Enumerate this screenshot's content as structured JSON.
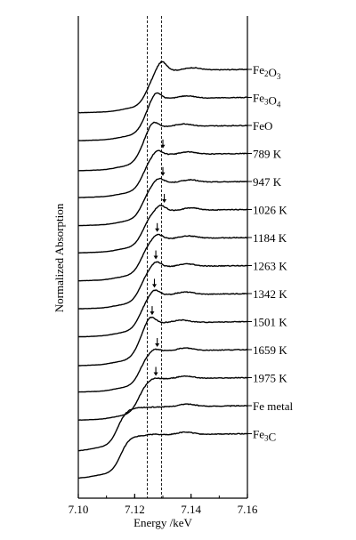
{
  "chart_data": {
    "type": "line",
    "xlabel": "Energy /keV",
    "ylabel": "Normalized Absorption",
    "xlim": [
      7.1,
      7.16
    ],
    "xticks": [
      "7.10",
      "7.12",
      "7.14",
      "7.16"
    ],
    "grid": false,
    "reference_lines_keV": [
      7.1245,
      7.1295
    ],
    "series": [
      {
        "name": "Fe2O3",
        "label_main": "Fe",
        "label_sub1": "2",
        "label_mid": "O",
        "label_sub2": "3",
        "edge": 7.1245,
        "peak_x": 7.1295,
        "peak_h": 1.15,
        "post": 0.9,
        "arrow": false
      },
      {
        "name": "Fe3O4",
        "label_main": "Fe",
        "label_sub1": "3",
        "label_mid": "O",
        "label_sub2": "4",
        "edge": 7.1235,
        "peak_x": 7.1275,
        "peak_h": 1.1,
        "post": 0.9,
        "arrow": false
      },
      {
        "name": "FeO",
        "label_main": "FeO",
        "label_sub1": "",
        "label_mid": "",
        "label_sub2": "",
        "edge": 7.1225,
        "peak_x": 7.1265,
        "peak_h": 1.12,
        "post": 0.95,
        "arrow": false
      },
      {
        "name": "789 K",
        "label_main": "789 K",
        "label_sub1": "",
        "label_mid": "",
        "label_sub2": "",
        "edge": 7.123,
        "peak_x": 7.128,
        "peak_h": 1.05,
        "post": 0.92,
        "arrow": true,
        "arrow_x": 7.13
      },
      {
        "name": "947 K",
        "label_main": "947 K",
        "label_sub1": "",
        "label_mid": "",
        "label_sub2": "",
        "edge": 7.123,
        "peak_x": 7.1285,
        "peak_h": 1.05,
        "post": 0.92,
        "arrow": true,
        "arrow_x": 7.13
      },
      {
        "name": "1026 K",
        "label_main": "1026 K",
        "label_sub1": "",
        "label_mid": "",
        "label_sub2": "",
        "edge": 7.123,
        "peak_x": 7.129,
        "peak_h": 1.05,
        "post": 0.9,
        "arrow": true,
        "arrow_x": 7.1305
      },
      {
        "name": "1184 K",
        "label_main": "1184 K",
        "label_sub1": "",
        "label_mid": "",
        "label_sub2": "",
        "edge": 7.1225,
        "peak_x": 7.128,
        "peak_h": 1.03,
        "post": 0.9,
        "arrow": true,
        "arrow_x": 7.128
      },
      {
        "name": "1263 K",
        "label_main": "1263 K",
        "label_sub1": "",
        "label_mid": "",
        "label_sub2": "",
        "edge": 7.1222,
        "peak_x": 7.1275,
        "peak_h": 1.05,
        "post": 0.9,
        "arrow": true,
        "arrow_x": 7.1275
      },
      {
        "name": "1342 K",
        "label_main": "1342 K",
        "label_sub1": "",
        "label_mid": "",
        "label_sub2": "",
        "edge": 7.122,
        "peak_x": 7.127,
        "peak_h": 1.05,
        "post": 0.9,
        "arrow": true,
        "arrow_x": 7.127
      },
      {
        "name": "1501 K",
        "label_main": "1501 K",
        "label_sub1": "",
        "label_mid": "",
        "label_sub2": "",
        "edge": 7.1215,
        "peak_x": 7.1255,
        "peak_h": 1.12,
        "post": 0.92,
        "arrow": true,
        "arrow_x": 7.1262
      },
      {
        "name": "1659 K",
        "label_main": "1659 K",
        "label_sub1": "",
        "label_mid": "",
        "label_sub2": "",
        "edge": 7.122,
        "peak_x": 7.127,
        "peak_h": 0.95,
        "post": 0.88,
        "arrow": true,
        "arrow_x": 7.128
      },
      {
        "name": "1975 K",
        "label_main": "1975 K",
        "label_sub1": "",
        "label_mid": "",
        "label_sub2": "",
        "edge": 7.1215,
        "peak_x": 7.127,
        "peak_h": 0.92,
        "post": 0.88,
        "arrow": true,
        "arrow_x": 7.1275
      },
      {
        "name": "Fe metal",
        "label_main": "Fe metal",
        "label_sub1": "",
        "label_mid": "",
        "label_sub2": "",
        "edge": 7.114,
        "peak_x": 7.1275,
        "peak_h": 0.95,
        "post": 0.95,
        "arrow": false
      },
      {
        "name": "Fe3C",
        "label_main": "Fe",
        "label_sub1": "3",
        "label_mid": "C",
        "label_sub2": "",
        "edge": 7.115,
        "peak_x": 7.127,
        "peak_h": 0.95,
        "post": 0.93,
        "arrow": false
      }
    ]
  }
}
